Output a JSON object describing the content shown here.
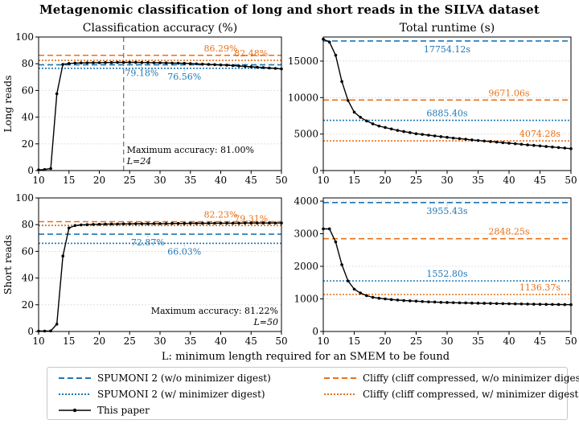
{
  "title": "Metagenomic classification of long and short reads in the SILVA dataset",
  "colors": {
    "blue": "#1f77b4",
    "orange": "#e8711a",
    "black": "#000000",
    "ref": "#777777"
  },
  "shared_xlabel": "L: minimum length required for an SMEM to be found",
  "legend": [
    {
      "label": "SPUMONI 2 (w/o minimizer digest)",
      "color": "#1f77b4",
      "style": "dashed"
    },
    {
      "label": "Cliffy (cliff compressed, w/o minimizer digest)",
      "color": "#e8711a",
      "style": "dashed"
    },
    {
      "label": "SPUMONI 2 (w/  minimizer digest)",
      "color": "#1f77b4",
      "style": "dotted"
    },
    {
      "label": "Cliffy (cliff compressed, w/  minimizer digest)",
      "color": "#e8711a",
      "style": "dotted"
    },
    {
      "label": "This paper",
      "color": "#000000",
      "style": "solid-marker"
    }
  ],
  "chart_data": [
    {
      "id": "acc_long",
      "type": "line",
      "col_title": "Classification accuracy (%)",
      "ylabel": "Long reads",
      "xlim": [
        10,
        50
      ],
      "ylim": [
        0,
        100
      ],
      "xticks": [
        10,
        15,
        20,
        25,
        30,
        35,
        40,
        45,
        50
      ],
      "yticks": [
        0,
        20,
        40,
        60,
        80,
        100
      ],
      "x": [
        10,
        11,
        12,
        13,
        14,
        15,
        16,
        17,
        18,
        19,
        20,
        21,
        22,
        23,
        24,
        25,
        26,
        27,
        28,
        29,
        30,
        31,
        32,
        33,
        34,
        35,
        36,
        37,
        38,
        39,
        40,
        41,
        42,
        43,
        44,
        45,
        46,
        47,
        48,
        49,
        50
      ],
      "y": [
        0.5,
        0.8,
        1.5,
        57.5,
        79.5,
        80.2,
        80.5,
        80.6,
        80.7,
        80.8,
        80.8,
        80.9,
        80.9,
        81.0,
        81.0,
        81.0,
        81.0,
        80.9,
        80.9,
        80.8,
        80.7,
        80.6,
        80.5,
        80.4,
        80.3,
        80.1,
        79.9,
        79.7,
        79.5,
        79.3,
        79.1,
        78.9,
        78.6,
        78.3,
        78.0,
        77.7,
        77.4,
        77.1,
        76.8,
        76.5,
        76.1
      ],
      "hlines": [
        {
          "value": 86.29,
          "label": "86.29%",
          "color": "orange",
          "style": "dashed"
        },
        {
          "value": 82.48,
          "label": "82.48%",
          "color": "orange",
          "style": "dotted"
        },
        {
          "value": 79.18,
          "label": "79.18%",
          "color": "blue",
          "style": "dashed"
        },
        {
          "value": 76.56,
          "label": "76.56%",
          "color": "blue",
          "style": "dotted"
        }
      ],
      "vline": 24,
      "note": [
        "Maximum accuracy: 81.00%",
        "L=24"
      ]
    },
    {
      "id": "rt_long",
      "type": "line",
      "col_title": "Total runtime (s)",
      "xlim": [
        10,
        50
      ],
      "ylim": [
        0,
        18300
      ],
      "xticks": [
        10,
        15,
        20,
        25,
        30,
        35,
        40,
        45,
        50
      ],
      "yticks": [
        0,
        5000,
        10000,
        15000
      ],
      "x": [
        10,
        11,
        12,
        13,
        14,
        15,
        16,
        17,
        18,
        19,
        20,
        21,
        22,
        23,
        24,
        25,
        26,
        27,
        28,
        29,
        30,
        31,
        32,
        33,
        34,
        35,
        36,
        37,
        38,
        39,
        40,
        41,
        42,
        43,
        44,
        45,
        46,
        47,
        48,
        49,
        50
      ],
      "y": [
        18000,
        17600,
        15800,
        12200,
        9600,
        8000,
        7300,
        6800,
        6400,
        6100,
        5900,
        5700,
        5500,
        5350,
        5200,
        5050,
        4950,
        4850,
        4750,
        4650,
        4550,
        4450,
        4380,
        4300,
        4200,
        4120,
        4050,
        3980,
        3900,
        3820,
        3750,
        3680,
        3600,
        3520,
        3450,
        3380,
        3300,
        3230,
        3150,
        3080,
        3000
      ],
      "hlines": [
        {
          "value": 17754.12,
          "label": "17754.12s",
          "color": "blue",
          "style": "dashed"
        },
        {
          "value": 9671.06,
          "label": "9671.06s",
          "color": "orange",
          "style": "dashed"
        },
        {
          "value": 6885.4,
          "label": "6885.40s",
          "color": "blue",
          "style": "dotted"
        },
        {
          "value": 4074.28,
          "label": "4074.28s",
          "color": "orange",
          "style": "dotted"
        }
      ]
    },
    {
      "id": "acc_short",
      "type": "line",
      "ylabel": "Short reads",
      "xlim": [
        10,
        50
      ],
      "ylim": [
        0,
        100
      ],
      "xticks": [
        10,
        15,
        20,
        25,
        30,
        35,
        40,
        45,
        50
      ],
      "yticks": [
        0,
        20,
        40,
        60,
        80,
        100
      ],
      "x": [
        10,
        11,
        12,
        13,
        14,
        15,
        16,
        17,
        18,
        19,
        20,
        21,
        22,
        23,
        24,
        25,
        26,
        27,
        28,
        29,
        30,
        31,
        32,
        33,
        34,
        35,
        36,
        37,
        38,
        39,
        40,
        41,
        42,
        43,
        44,
        45,
        46,
        47,
        48,
        49,
        50
      ],
      "y": [
        0.3,
        0.3,
        0.4,
        5.5,
        56.5,
        77.5,
        79.3,
        79.8,
        80.0,
        80.2,
        80.3,
        80.4,
        80.5,
        80.5,
        80.6,
        80.6,
        80.7,
        80.7,
        80.7,
        80.8,
        80.8,
        80.8,
        80.9,
        80.9,
        80.9,
        81.0,
        81.0,
        81.0,
        81.0,
        81.1,
        81.1,
        81.1,
        81.1,
        81.1,
        81.2,
        81.2,
        81.2,
        81.2,
        81.2,
        81.2,
        81.22
      ],
      "hlines": [
        {
          "value": 82.23,
          "label": "82.23%",
          "color": "orange",
          "style": "dashed"
        },
        {
          "value": 79.31,
          "label": "79.31%",
          "color": "orange",
          "style": "dotted"
        },
        {
          "value": 72.87,
          "label": "72.87%",
          "color": "blue",
          "style": "dashed"
        },
        {
          "value": 66.03,
          "label": "66.03%",
          "color": "blue",
          "style": "dotted"
        }
      ],
      "note": [
        "Maximum accuracy: 81.22%",
        "L=50"
      ]
    },
    {
      "id": "rt_short",
      "type": "line",
      "xlim": [
        10,
        50
      ],
      "ylim": [
        0,
        4100
      ],
      "xticks": [
        10,
        15,
        20,
        25,
        30,
        35,
        40,
        45,
        50
      ],
      "yticks": [
        0,
        1000,
        2000,
        3000,
        4000
      ],
      "x": [
        10,
        11,
        12,
        13,
        14,
        15,
        16,
        17,
        18,
        19,
        20,
        21,
        22,
        23,
        24,
        25,
        26,
        27,
        28,
        29,
        30,
        31,
        32,
        33,
        34,
        35,
        36,
        37,
        38,
        39,
        40,
        41,
        42,
        43,
        44,
        45,
        46,
        47,
        48,
        49,
        50
      ],
      "y": [
        3150,
        3150,
        2750,
        2050,
        1550,
        1300,
        1180,
        1100,
        1050,
        1020,
        1000,
        980,
        965,
        950,
        940,
        930,
        920,
        910,
        905,
        895,
        890,
        885,
        880,
        878,
        872,
        868,
        865,
        862,
        858,
        855,
        852,
        848,
        845,
        842,
        838,
        835,
        832,
        830,
        828,
        825,
        822
      ],
      "hlines": [
        {
          "value": 3955.43,
          "label": "3955.43s",
          "color": "blue",
          "style": "dashed"
        },
        {
          "value": 2848.25,
          "label": "2848.25s",
          "color": "orange",
          "style": "dashed"
        },
        {
          "value": 1552.8,
          "label": "1552.80s",
          "color": "blue",
          "style": "dotted"
        },
        {
          "value": 1136.37,
          "label": "1136.37s",
          "color": "orange",
          "style": "dotted"
        }
      ]
    }
  ]
}
